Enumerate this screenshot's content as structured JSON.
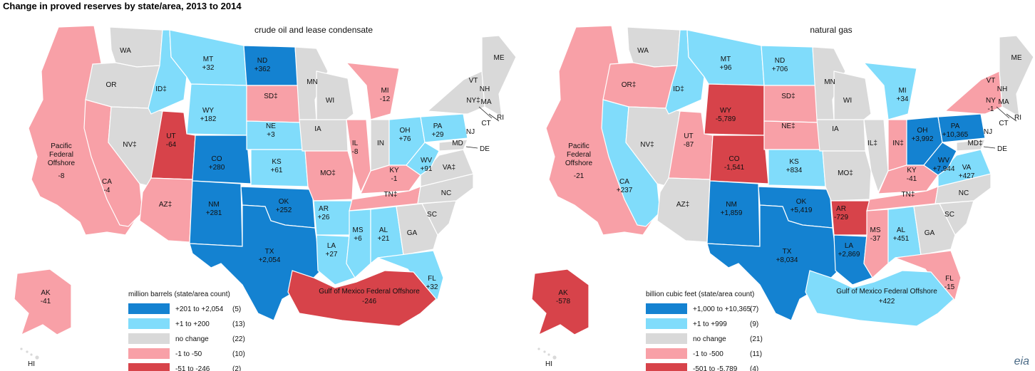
{
  "title": "Change in proved reserves by state/area, 2013 to 2014",
  "colors": {
    "dark_blue": "#1482d1",
    "light_blue": "#80dcfb",
    "gray": "#d9d9d9",
    "pink": "#f8a0a7",
    "red": "#d7434a"
  },
  "maps": [
    {
      "subtitle": "crude oil and lease condensate",
      "legend": {
        "title": "million barrels (state/area count)",
        "items": [
          {
            "color": "dark_blue",
            "label": "+201 to +2,054",
            "count": "(5)"
          },
          {
            "color": "light_blue",
            "label": "+1 to +200",
            "count": "(13)"
          },
          {
            "color": "gray",
            "label": "no change",
            "count": "(22)"
          },
          {
            "color": "pink",
            "label": "-1 to -50",
            "count": "(10)"
          },
          {
            "color": "red",
            "label": "-51 to -246",
            "count": "(2)"
          }
        ]
      },
      "regions": {
        "WA": {
          "label": "WA",
          "value": "",
          "color": "gray"
        },
        "OR": {
          "label": "OR",
          "value": "",
          "color": "gray"
        },
        "CA": {
          "label": "CA",
          "value": "-4",
          "color": "pink"
        },
        "NV": {
          "label": "NV‡",
          "value": "",
          "color": "gray"
        },
        "ID": {
          "label": "ID‡",
          "value": "",
          "color": "light_blue"
        },
        "MT": {
          "label": "MT",
          "value": "+32",
          "color": "light_blue"
        },
        "WY": {
          "label": "WY",
          "value": "+182",
          "color": "light_blue"
        },
        "UT": {
          "label": "UT",
          "value": "-64",
          "color": "red"
        },
        "CO": {
          "label": "CO",
          "value": "+280",
          "color": "dark_blue"
        },
        "AZ": {
          "label": "AZ‡",
          "value": "",
          "color": "pink"
        },
        "NM": {
          "label": "NM",
          "value": "+281",
          "color": "dark_blue"
        },
        "ND": {
          "label": "ND",
          "value": "+362",
          "color": "dark_blue"
        },
        "SD": {
          "label": "SD‡",
          "value": "",
          "color": "pink"
        },
        "NE": {
          "label": "NE",
          "value": "+3",
          "color": "light_blue"
        },
        "KS": {
          "label": "KS",
          "value": "+61",
          "color": "light_blue"
        },
        "OK": {
          "label": "OK",
          "value": "+252",
          "color": "dark_blue"
        },
        "TX": {
          "label": "TX",
          "value": "+2,054",
          "color": "dark_blue"
        },
        "MN": {
          "label": "MN",
          "value": "",
          "color": "gray"
        },
        "IA": {
          "label": "IA",
          "value": "",
          "color": "gray"
        },
        "MO": {
          "label": "MO‡",
          "value": "",
          "color": "pink"
        },
        "AR": {
          "label": "AR",
          "value": "+26",
          "color": "light_blue"
        },
        "LA": {
          "label": "LA",
          "value": "+27",
          "color": "light_blue"
        },
        "WI": {
          "label": "WI",
          "value": "",
          "color": "gray"
        },
        "IL": {
          "label": "IL",
          "value": "-8",
          "color": "pink"
        },
        "MI": {
          "label": "MI",
          "value": "-12",
          "color": "pink"
        },
        "IN": {
          "label": "IN",
          "value": "",
          "color": "gray"
        },
        "OH": {
          "label": "OH",
          "value": "+76",
          "color": "light_blue"
        },
        "KY": {
          "label": "KY",
          "value": "-1",
          "color": "pink"
        },
        "TN": {
          "label": "TN‡",
          "value": "",
          "color": "pink"
        },
        "MS": {
          "label": "MS",
          "value": "+6",
          "color": "light_blue"
        },
        "AL": {
          "label": "AL",
          "value": "+21",
          "color": "light_blue"
        },
        "GA": {
          "label": "GA",
          "value": "",
          "color": "gray"
        },
        "FL": {
          "label": "FL",
          "value": "+32",
          "color": "light_blue"
        },
        "SC": {
          "label": "SC",
          "value": "",
          "color": "gray"
        },
        "NC": {
          "label": "NC",
          "value": "",
          "color": "gray"
        },
        "VA": {
          "label": "VA‡",
          "value": "",
          "color": "gray"
        },
        "WV": {
          "label": "WV",
          "value": "+91",
          "color": "light_blue"
        },
        "PA": {
          "label": "PA",
          "value": "+29",
          "color": "light_blue"
        },
        "NY": {
          "label": "NY‡",
          "value": "",
          "color": "gray"
        },
        "NE_states": {
          "label": "",
          "value": "",
          "color": "gray"
        },
        "MD": {
          "label": "MD",
          "value": "",
          "color": "gray"
        },
        "AK": {
          "label": "AK",
          "value": "-41",
          "color": "pink"
        },
        "PAC": {
          "label": "Pacific Federal Offshore",
          "value": "-8",
          "color": "pink"
        },
        "GOM": {
          "label": "Gulf of Mexico Federal Offshore",
          "value": "-246",
          "color": "red"
        }
      }
    },
    {
      "subtitle": "natural gas",
      "legend": {
        "title": "billion cubic feet (state/area count)",
        "items": [
          {
            "color": "dark_blue",
            "label": "+1,000 to +10,365",
            "count": "(7)"
          },
          {
            "color": "light_blue",
            "label": "+1 to +999",
            "count": "(9)"
          },
          {
            "color": "gray",
            "label": "no change",
            "count": "(21)"
          },
          {
            "color": "pink",
            "label": "-1 to -500",
            "count": "(11)"
          },
          {
            "color": "red",
            "label": "-501 to -5,789",
            "count": "(4)"
          }
        ]
      },
      "regions": {
        "WA": {
          "label": "WA",
          "value": "",
          "color": "gray"
        },
        "OR": {
          "label": "OR‡",
          "value": "",
          "color": "pink"
        },
        "CA": {
          "label": "CA",
          "value": "+237",
          "color": "light_blue"
        },
        "NV": {
          "label": "NV‡",
          "value": "",
          "color": "gray"
        },
        "ID": {
          "label": "ID‡",
          "value": "",
          "color": "light_blue"
        },
        "MT": {
          "label": "MT",
          "value": "+96",
          "color": "light_blue"
        },
        "WY": {
          "label": "WY",
          "value": "-5,789",
          "color": "red"
        },
        "UT": {
          "label": "UT",
          "value": "-87",
          "color": "pink"
        },
        "CO": {
          "label": "CO",
          "value": "-1,541",
          "color": "red"
        },
        "AZ": {
          "label": "AZ‡",
          "value": "",
          "color": "gray"
        },
        "NM": {
          "label": "NM",
          "value": "+1,859",
          "color": "dark_blue"
        },
        "ND": {
          "label": "ND",
          "value": "+706",
          "color": "light_blue"
        },
        "SD": {
          "label": "SD‡",
          "value": "",
          "color": "pink"
        },
        "NE": {
          "label": "NE‡",
          "value": "",
          "color": "pink"
        },
        "KS": {
          "label": "KS",
          "value": "+834",
          "color": "light_blue"
        },
        "OK": {
          "label": "OK",
          "value": "+5,419",
          "color": "dark_blue"
        },
        "TX": {
          "label": "TX",
          "value": "+8,034",
          "color": "dark_blue"
        },
        "MN": {
          "label": "MN",
          "value": "",
          "color": "gray"
        },
        "IA": {
          "label": "IA",
          "value": "",
          "color": "gray"
        },
        "MO": {
          "label": "MO‡",
          "value": "",
          "color": "gray"
        },
        "AR": {
          "label": "AR",
          "value": "-729",
          "color": "red"
        },
        "LA": {
          "label": "LA",
          "value": "+2,869",
          "color": "dark_blue"
        },
        "WI": {
          "label": "WI",
          "value": "",
          "color": "gray"
        },
        "IL": {
          "label": "IL‡",
          "value": "",
          "color": "gray"
        },
        "MI": {
          "label": "MI",
          "value": "+34",
          "color": "light_blue"
        },
        "IN": {
          "label": "IN‡",
          "value": "",
          "color": "pink"
        },
        "OH": {
          "label": "OH",
          "value": "+3,992",
          "color": "dark_blue"
        },
        "KY": {
          "label": "KY",
          "value": "-41",
          "color": "pink"
        },
        "TN": {
          "label": "TN‡",
          "value": "",
          "color": "pink"
        },
        "MS": {
          "label": "MS",
          "value": "-37",
          "color": "pink"
        },
        "AL": {
          "label": "AL",
          "value": "+451",
          "color": "light_blue"
        },
        "GA": {
          "label": "GA",
          "value": "",
          "color": "gray"
        },
        "FL": {
          "label": "FL",
          "value": "-15",
          "color": "pink"
        },
        "SC": {
          "label": "SC",
          "value": "",
          "color": "gray"
        },
        "NC": {
          "label": "NC",
          "value": "",
          "color": "gray"
        },
        "VA": {
          "label": "VA",
          "value": "+427",
          "color": "light_blue"
        },
        "WV": {
          "label": "WV",
          "value": "+7,944",
          "color": "dark_blue"
        },
        "PA": {
          "label": "PA",
          "value": "+10,365",
          "color": "dark_blue"
        },
        "NY": {
          "label": "NY",
          "value": "-1",
          "color": "pink"
        },
        "NE_states": {
          "label": "",
          "value": "",
          "color": "gray"
        },
        "MD": {
          "label": "MD‡",
          "value": "",
          "color": "gray"
        },
        "AK": {
          "label": "AK",
          "value": "-578",
          "color": "red"
        },
        "PAC": {
          "label": "Pacific Federal Offshore",
          "value": "-21",
          "color": "pink"
        },
        "GOM": {
          "label": "Gulf of Mexico Federal Offshore",
          "value": "+422",
          "color": "light_blue"
        }
      }
    }
  ],
  "small_labels": [
    "VT",
    "NH",
    "ME",
    "MA",
    "CT",
    "RI",
    "NJ",
    "DE",
    "HI"
  ],
  "source_logo": "eia"
}
